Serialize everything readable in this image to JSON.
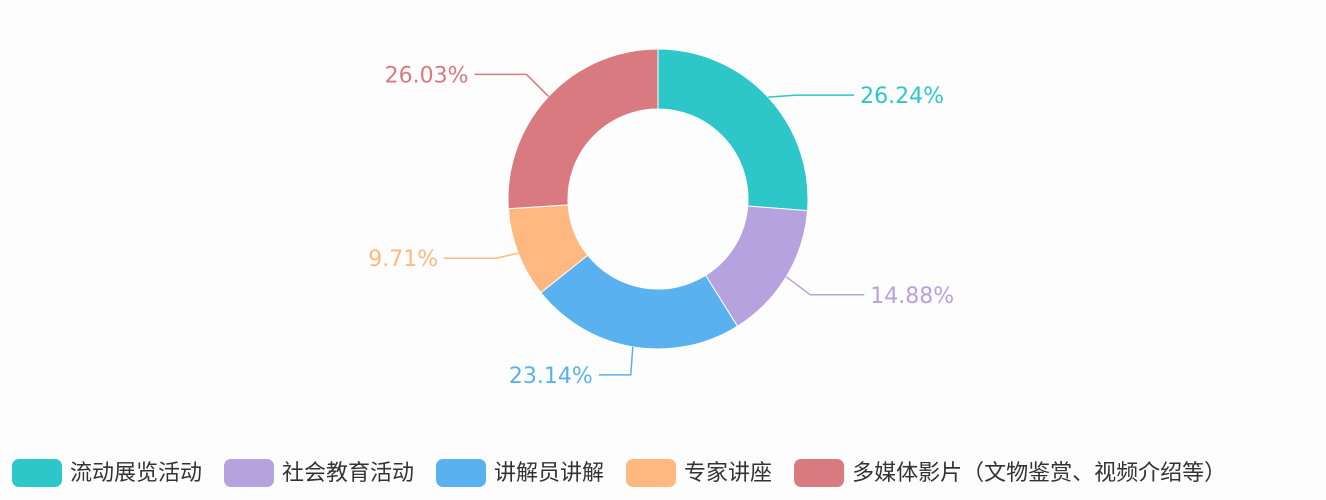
{
  "chart_data": {
    "type": "pie",
    "variant": "donut",
    "title": "",
    "legend_position": "bottom",
    "series": [
      {
        "name": "流动展览活动",
        "value": 26.24,
        "label": "26.24%",
        "color": "#2ec7c9"
      },
      {
        "name": "社会教育活动",
        "value": 14.88,
        "label": "14.88%",
        "color": "#b6a2de"
      },
      {
        "name": "讲解员讲解",
        "value": 23.14,
        "label": "23.14%",
        "color": "#5ab1ef"
      },
      {
        "name": "专家讲座",
        "value": 9.71,
        "label": "9.71%",
        "color": "#ffb980"
      },
      {
        "name": "多媒体影片（文物鉴赏、视频介绍等）",
        "value": 26.03,
        "label": "26.03%",
        "color": "#d87a80"
      }
    ]
  }
}
